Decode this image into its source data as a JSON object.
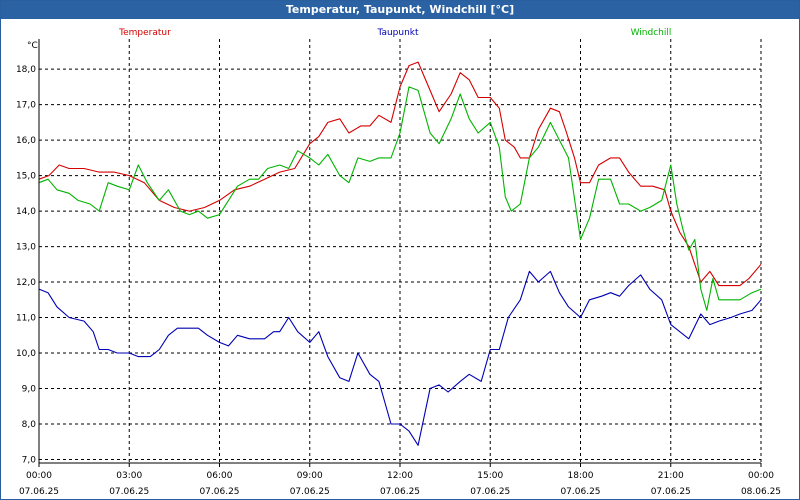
{
  "window": {
    "title": "Temperatur, Taupunkt, Windchill [°C]"
  },
  "chart_data": {
    "type": "line",
    "title": "Temperatur, Taupunkt, Windchill [°C]",
    "ylabel": "°C",
    "xlabel": "",
    "ylim": [
      6.9,
      18.85
    ],
    "xlim": [
      0,
      24
    ],
    "grid": true,
    "yticks": [
      7.0,
      8.0,
      9.0,
      10.0,
      11.0,
      12.0,
      13.0,
      14.0,
      15.0,
      16.0,
      17.0,
      18.0
    ],
    "ytick_labels": [
      "7,0",
      "8,0",
      "9,0",
      "10,0",
      "11,0",
      "12,0",
      "13,0",
      "14,0",
      "15,0",
      "16,0",
      "17,0",
      "18,0"
    ],
    "xticks": [
      {
        "x": 0,
        "time": "00:00",
        "date": "07.06.25"
      },
      {
        "x": 3,
        "time": "03:00",
        "date": "07.06.25"
      },
      {
        "x": 6,
        "time": "06:00",
        "date": "07.06.25"
      },
      {
        "x": 9,
        "time": "09:00",
        "date": "07.06.25"
      },
      {
        "x": 12,
        "time": "12:00",
        "date": "07.06.25"
      },
      {
        "x": 15,
        "time": "15:00",
        "date": "07.06.25"
      },
      {
        "x": 18,
        "time": "18:00",
        "date": "07.06.25"
      },
      {
        "x": 21,
        "time": "21:00",
        "date": "07.06.25"
      },
      {
        "x": 24,
        "time": "00:00",
        "date": "08.06.25"
      }
    ],
    "series": [
      {
        "name": "Temperatur",
        "color": "#d40000",
        "points": [
          [
            0,
            14.9
          ],
          [
            0.33,
            15.0
          ],
          [
            0.67,
            15.3
          ],
          [
            1,
            15.2
          ],
          [
            1.5,
            15.2
          ],
          [
            2,
            15.1
          ],
          [
            2.5,
            15.1
          ],
          [
            3,
            15.0
          ],
          [
            3.5,
            14.8
          ],
          [
            4,
            14.3
          ],
          [
            4.5,
            14.1
          ],
          [
            5,
            14.0
          ],
          [
            5.5,
            14.1
          ],
          [
            6,
            14.3
          ],
          [
            6.5,
            14.6
          ],
          [
            7,
            14.7
          ],
          [
            7.5,
            14.9
          ],
          [
            8,
            15.1
          ],
          [
            8.5,
            15.2
          ],
          [
            9,
            15.9
          ],
          [
            9.3,
            16.1
          ],
          [
            9.6,
            16.5
          ],
          [
            10,
            16.6
          ],
          [
            10.3,
            16.2
          ],
          [
            10.7,
            16.4
          ],
          [
            11,
            16.4
          ],
          [
            11.3,
            16.7
          ],
          [
            11.7,
            16.5
          ],
          [
            12,
            17.5
          ],
          [
            12.3,
            18.1
          ],
          [
            12.6,
            18.2
          ],
          [
            13,
            17.4
          ],
          [
            13.3,
            16.8
          ],
          [
            13.7,
            17.3
          ],
          [
            14,
            17.9
          ],
          [
            14.3,
            17.7
          ],
          [
            14.6,
            17.2
          ],
          [
            15,
            17.2
          ],
          [
            15.3,
            16.9
          ],
          [
            15.5,
            16.0
          ],
          [
            15.8,
            15.8
          ],
          [
            16,
            15.5
          ],
          [
            16.3,
            15.5
          ],
          [
            16.6,
            16.3
          ],
          [
            17,
            16.9
          ],
          [
            17.3,
            16.8
          ],
          [
            17.5,
            16.3
          ],
          [
            17.8,
            15.5
          ],
          [
            18,
            14.8
          ],
          [
            18.3,
            14.8
          ],
          [
            18.6,
            15.3
          ],
          [
            19,
            15.5
          ],
          [
            19.3,
            15.5
          ],
          [
            19.6,
            15.1
          ],
          [
            20,
            14.7
          ],
          [
            20.4,
            14.7
          ],
          [
            20.8,
            14.6
          ],
          [
            21,
            14.0
          ],
          [
            21.3,
            13.4
          ],
          [
            21.6,
            13.0
          ],
          [
            21.8,
            12.5
          ],
          [
            22,
            12.0
          ],
          [
            22.3,
            12.3
          ],
          [
            22.6,
            11.9
          ],
          [
            23,
            11.9
          ],
          [
            23.3,
            11.9
          ],
          [
            23.6,
            12.1
          ],
          [
            24,
            12.5
          ]
        ]
      },
      {
        "name": "Taupunkt",
        "color": "#0000b4",
        "points": [
          [
            0,
            11.8
          ],
          [
            0.3,
            11.7
          ],
          [
            0.6,
            11.3
          ],
          [
            1,
            11.0
          ],
          [
            1.5,
            10.9
          ],
          [
            1.8,
            10.6
          ],
          [
            2,
            10.1
          ],
          [
            2.3,
            10.1
          ],
          [
            2.6,
            10.0
          ],
          [
            3,
            10.0
          ],
          [
            3.3,
            9.9
          ],
          [
            3.7,
            9.9
          ],
          [
            4,
            10.1
          ],
          [
            4.3,
            10.5
          ],
          [
            4.6,
            10.7
          ],
          [
            5,
            10.7
          ],
          [
            5.3,
            10.7
          ],
          [
            5.6,
            10.5
          ],
          [
            6,
            10.3
          ],
          [
            6.3,
            10.2
          ],
          [
            6.6,
            10.5
          ],
          [
            7,
            10.4
          ],
          [
            7.5,
            10.4
          ],
          [
            7.8,
            10.6
          ],
          [
            8,
            10.6
          ],
          [
            8.3,
            11.0
          ],
          [
            8.6,
            10.6
          ],
          [
            9,
            10.3
          ],
          [
            9.3,
            10.6
          ],
          [
            9.6,
            9.9
          ],
          [
            10,
            9.3
          ],
          [
            10.3,
            9.2
          ],
          [
            10.6,
            10.0
          ],
          [
            11,
            9.4
          ],
          [
            11.3,
            9.2
          ],
          [
            11.7,
            8.0
          ],
          [
            12,
            8.0
          ],
          [
            12.3,
            7.8
          ],
          [
            12.6,
            7.4
          ],
          [
            13,
            9.0
          ],
          [
            13.3,
            9.1
          ],
          [
            13.6,
            8.9
          ],
          [
            14,
            9.2
          ],
          [
            14.3,
            9.4
          ],
          [
            14.7,
            9.2
          ],
          [
            15,
            10.1
          ],
          [
            15.3,
            10.1
          ],
          [
            15.6,
            11.0
          ],
          [
            16,
            11.5
          ],
          [
            16.3,
            12.3
          ],
          [
            16.6,
            12.0
          ],
          [
            17,
            12.3
          ],
          [
            17.3,
            11.7
          ],
          [
            17.6,
            11.3
          ],
          [
            18,
            11.0
          ],
          [
            18.3,
            11.5
          ],
          [
            18.7,
            11.6
          ],
          [
            19,
            11.7
          ],
          [
            19.3,
            11.6
          ],
          [
            19.6,
            11.9
          ],
          [
            20,
            12.2
          ],
          [
            20.3,
            11.8
          ],
          [
            20.7,
            11.5
          ],
          [
            21,
            10.8
          ],
          [
            21.3,
            10.6
          ],
          [
            21.6,
            10.4
          ],
          [
            22,
            11.1
          ],
          [
            22.3,
            10.8
          ],
          [
            22.6,
            10.9
          ],
          [
            23,
            11.0
          ],
          [
            23.3,
            11.1
          ],
          [
            23.7,
            11.2
          ],
          [
            24,
            11.5
          ]
        ]
      },
      {
        "name": "Windchill",
        "color": "#00b400",
        "points": [
          [
            0,
            14.8
          ],
          [
            0.3,
            14.9
          ],
          [
            0.6,
            14.6
          ],
          [
            1,
            14.5
          ],
          [
            1.3,
            14.3
          ],
          [
            1.7,
            14.2
          ],
          [
            2,
            14.0
          ],
          [
            2.3,
            14.8
          ],
          [
            2.6,
            14.7
          ],
          [
            3,
            14.6
          ],
          [
            3.3,
            15.3
          ],
          [
            3.6,
            14.8
          ],
          [
            4,
            14.3
          ],
          [
            4.3,
            14.6
          ],
          [
            4.7,
            14.0
          ],
          [
            5,
            13.9
          ],
          [
            5.3,
            14.0
          ],
          [
            5.6,
            13.8
          ],
          [
            6,
            13.9
          ],
          [
            6.3,
            14.3
          ],
          [
            6.6,
            14.7
          ],
          [
            7,
            14.9
          ],
          [
            7.3,
            14.9
          ],
          [
            7.6,
            15.2
          ],
          [
            8,
            15.3
          ],
          [
            8.3,
            15.2
          ],
          [
            8.6,
            15.7
          ],
          [
            9,
            15.5
          ],
          [
            9.3,
            15.3
          ],
          [
            9.6,
            15.6
          ],
          [
            10,
            15.0
          ],
          [
            10.3,
            14.8
          ],
          [
            10.6,
            15.5
          ],
          [
            11,
            15.4
          ],
          [
            11.3,
            15.5
          ],
          [
            11.7,
            15.5
          ],
          [
            12,
            16.2
          ],
          [
            12.3,
            17.5
          ],
          [
            12.6,
            17.4
          ],
          [
            13,
            16.2
          ],
          [
            13.3,
            15.9
          ],
          [
            13.7,
            16.6
          ],
          [
            14,
            17.3
          ],
          [
            14.3,
            16.6
          ],
          [
            14.6,
            16.2
          ],
          [
            15,
            16.5
          ],
          [
            15.3,
            15.8
          ],
          [
            15.5,
            14.4
          ],
          [
            15.7,
            14.0
          ],
          [
            16,
            14.2
          ],
          [
            16.3,
            15.5
          ],
          [
            16.6,
            15.8
          ],
          [
            17,
            16.5
          ],
          [
            17.3,
            16.0
          ],
          [
            17.6,
            15.5
          ],
          [
            18,
            13.2
          ],
          [
            18.3,
            13.8
          ],
          [
            18.6,
            14.9
          ],
          [
            19,
            14.9
          ],
          [
            19.3,
            14.2
          ],
          [
            19.6,
            14.2
          ],
          [
            20,
            14.0
          ],
          [
            20.3,
            14.1
          ],
          [
            20.7,
            14.3
          ],
          [
            21,
            15.3
          ],
          [
            21.2,
            14.2
          ],
          [
            21.4,
            13.5
          ],
          [
            21.6,
            12.9
          ],
          [
            21.8,
            13.2
          ],
          [
            22,
            11.8
          ],
          [
            22.2,
            11.2
          ],
          [
            22.4,
            12.1
          ],
          [
            22.6,
            11.5
          ],
          [
            23,
            11.5
          ],
          [
            23.3,
            11.5
          ],
          [
            23.7,
            11.7
          ],
          [
            24,
            11.8
          ]
        ]
      }
    ]
  }
}
